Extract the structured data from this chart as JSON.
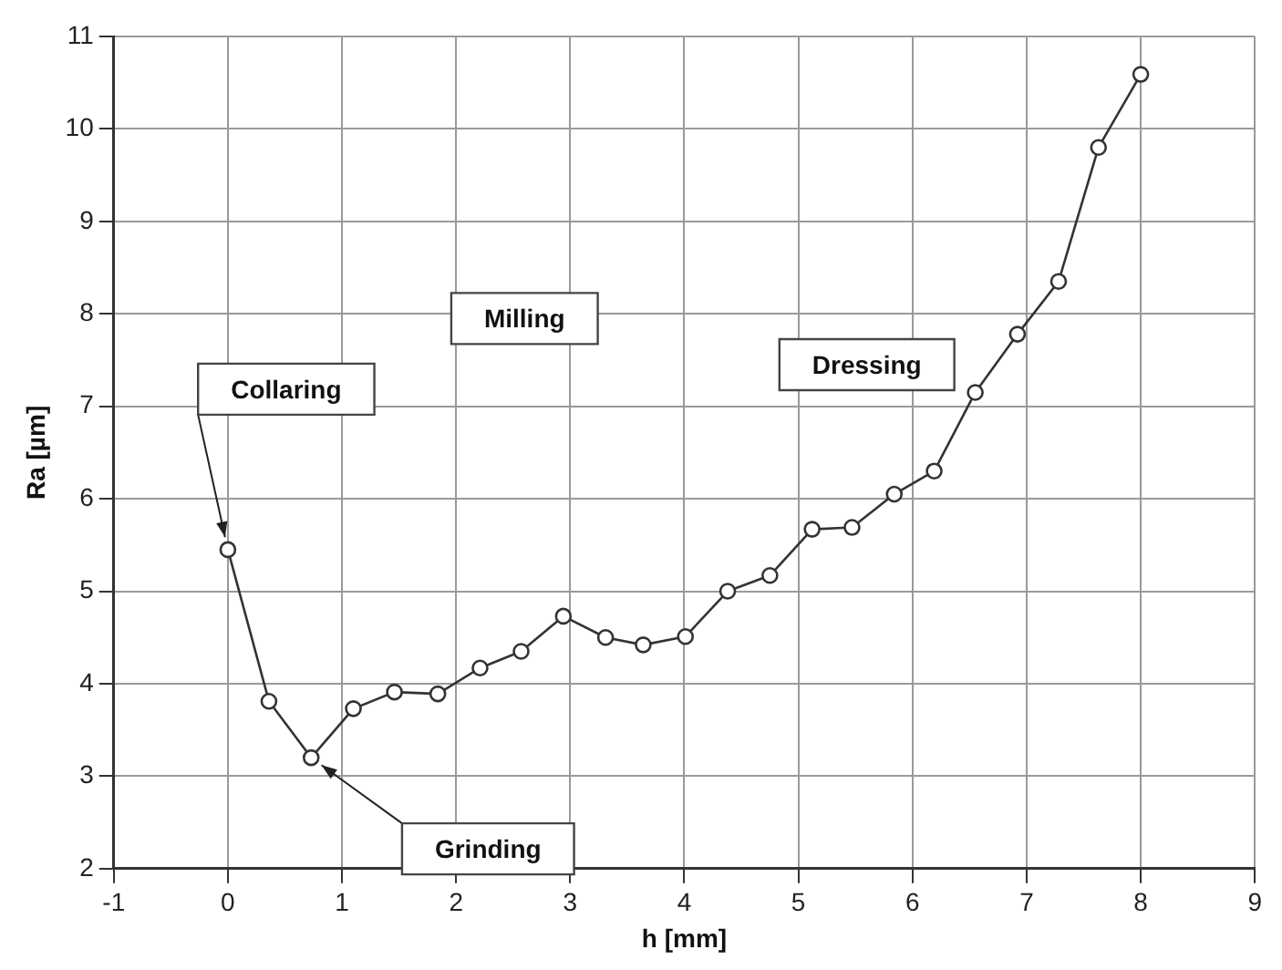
{
  "chart_data": {
    "type": "line",
    "xlabel": "h [mm]",
    "ylabel": "Ra [µm]",
    "series": [
      {
        "color": "#333333",
        "x": [
          0,
          0.36,
          0.73,
          1.1,
          1.46,
          1.84,
          2.21,
          2.57,
          2.94,
          3.31,
          3.64,
          4.01,
          4.38,
          4.75,
          5.12,
          5.47,
          5.84,
          6.19,
          6.55,
          6.92,
          7.28,
          7.63,
          8.0
        ],
        "values": [
          5.45,
          3.81,
          3.2,
          3.73,
          3.91,
          3.89,
          4.17,
          4.35,
          4.73,
          4.5,
          4.42,
          4.51,
          5.0,
          5.17,
          5.67,
          5.69,
          6.05,
          6.3,
          7.15,
          7.78,
          8.35,
          9.8,
          10.59
        ]
      }
    ],
    "xlim": [
      -1,
      9
    ],
    "xticks": [
      -1,
      0,
      1,
      2,
      3,
      4,
      5,
      6,
      7,
      8,
      9
    ],
    "ylim": [
      2,
      11
    ],
    "yticks": [
      2,
      3,
      4,
      5,
      6,
      7,
      8,
      9,
      10,
      11
    ],
    "grid": true,
    "legend": false,
    "marker": "circle",
    "line_style": "solid",
    "annotations": [
      "Collaring",
      "Milling",
      "Grinding",
      "Dressing"
    ]
  }
}
